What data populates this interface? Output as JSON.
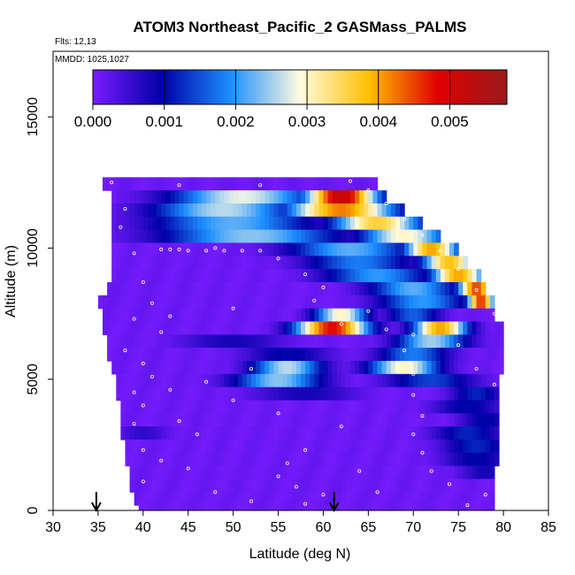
{
  "chart_data": {
    "type": "heatmap",
    "title": "ATOM3 Northeast_Pacific_2 GASMass_PALMS",
    "annotations": [
      "Flts: 12,13",
      "MMDD: 1025,1027"
    ],
    "xlabel": "Latitude (deg N)",
    "ylabel": "Altitude (m)",
    "xlim": [
      30,
      85
    ],
    "ylim": [
      0,
      17500
    ],
    "xticks": [
      30,
      35,
      40,
      45,
      50,
      55,
      60,
      65,
      70,
      75,
      80,
      85
    ],
    "yticks": [
      0,
      5000,
      10000,
      15000
    ],
    "colorbar": {
      "ticks": [
        "0.000",
        "0.001",
        "0.002",
        "0.003",
        "0.004",
        "0.005"
      ],
      "range": [
        0,
        0.0058
      ],
      "colors": [
        "#7a1cff",
        "#0000a8",
        "#1d8fff",
        "#fffbe0",
        "#ffc000",
        "#e00000",
        "#9a1a1a"
      ],
      "placement": "top inside"
    },
    "flight_markers_lat": [
      34.8,
      61.2
    ],
    "heat_rows": [
      {
        "alt": 12450,
        "lat_start": 35.5,
        "lat_end": 66.0,
        "peaks": []
      },
      {
        "alt": 11950,
        "lat_start": 36.5,
        "lat_end": 67.0,
        "peaks": [
          [
            51,
            0.0028,
            8
          ],
          [
            62,
            0.0052,
            4
          ]
        ]
      },
      {
        "alt": 11450,
        "lat_start": 36.5,
        "lat_end": 69.0,
        "peaks": [
          [
            49,
            0.0026,
            8
          ],
          [
            62,
            0.0042,
            6
          ]
        ]
      },
      {
        "alt": 10950,
        "lat_start": 36.5,
        "lat_end": 71.0,
        "peaks": [
          [
            50,
            0.0022,
            9
          ],
          [
            66,
            0.0036,
            5
          ]
        ]
      },
      {
        "alt": 10450,
        "lat_start": 36.5,
        "lat_end": 73.0,
        "peaks": [
          [
            52,
            0.0024,
            10
          ],
          [
            69,
            0.003,
            5
          ]
        ]
      },
      {
        "alt": 9950,
        "lat_start": 36.5,
        "lat_end": 75.0,
        "peaks": [
          [
            63,
            0.0022,
            7
          ],
          [
            72,
            0.004,
            3
          ]
        ]
      },
      {
        "alt": 9450,
        "lat_start": 36.5,
        "lat_end": 76.0,
        "peaks": [
          [
            64,
            0.0018,
            6
          ],
          [
            74,
            0.0038,
            3
          ]
        ]
      },
      {
        "alt": 8950,
        "lat_start": 36.5,
        "lat_end": 77.5,
        "peaks": [
          [
            66,
            0.002,
            6
          ],
          [
            75,
            0.004,
            3
          ]
        ]
      },
      {
        "alt": 8450,
        "lat_start": 36.0,
        "lat_end": 78.0,
        "peaks": [
          [
            70,
            0.0022,
            5
          ],
          [
            77,
            0.0045,
            2
          ]
        ]
      },
      {
        "alt": 7950,
        "lat_start": 35.0,
        "lat_end": 79.0,
        "peaks": [
          [
            71,
            0.002,
            5
          ],
          [
            77.5,
            0.0046,
            1.5
          ]
        ]
      },
      {
        "alt": 7450,
        "lat_start": 35.5,
        "lat_end": 79.0,
        "peaks": [
          [
            62,
            0.003,
            3
          ],
          [
            70,
            0.0016,
            3
          ]
        ]
      },
      {
        "alt": 6950,
        "lat_start": 35.5,
        "lat_end": 80.0,
        "peaks": [
          [
            61,
            0.0048,
            4
          ],
          [
            73,
            0.004,
            3
          ]
        ]
      },
      {
        "alt": 6450,
        "lat_start": 36.0,
        "lat_end": 80.0,
        "peaks": [
          [
            50,
            0.0008,
            6
          ],
          [
            72,
            0.0025,
            4
          ]
        ]
      },
      {
        "alt": 5950,
        "lat_start": 36.0,
        "lat_end": 80.0,
        "peaks": [
          [
            56,
            0.001,
            5
          ],
          [
            70,
            0.0018,
            4
          ]
        ]
      },
      {
        "alt": 5450,
        "lat_start": 36.5,
        "lat_end": 80.0,
        "peaks": [
          [
            56,
            0.0026,
            4
          ],
          [
            69,
            0.003,
            4
          ]
        ]
      },
      {
        "alt": 4950,
        "lat_start": 37.0,
        "lat_end": 79.5,
        "peaks": [
          [
            55,
            0.0024,
            5
          ],
          [
            72,
            0.0014,
            5
          ]
        ]
      },
      {
        "alt": 4450,
        "lat_start": 37.0,
        "lat_end": 79.5,
        "peaks": [
          [
            58,
            0.0008,
            6
          ],
          [
            77,
            0.0012,
            3
          ]
        ]
      },
      {
        "alt": 3950,
        "lat_start": 37.5,
        "lat_end": 79.5,
        "peaks": [
          [
            76,
            0.001,
            4
          ]
        ]
      },
      {
        "alt": 3450,
        "lat_start": 37.5,
        "lat_end": 79.5,
        "peaks": [
          [
            78,
            0.001,
            3
          ]
        ]
      },
      {
        "alt": 2950,
        "lat_start": 37.5,
        "lat_end": 79.5,
        "peaks": [
          [
            40,
            0.0006,
            3
          ],
          [
            76,
            0.0012,
            4
          ]
        ]
      },
      {
        "alt": 2450,
        "lat_start": 38.0,
        "lat_end": 79.5,
        "peaks": [
          [
            77,
            0.0012,
            4
          ]
        ]
      },
      {
        "alt": 1950,
        "lat_start": 38.0,
        "lat_end": 79.5,
        "peaks": [
          [
            77,
            0.001,
            4
          ]
        ]
      },
      {
        "alt": 1450,
        "lat_start": 38.5,
        "lat_end": 79.0,
        "peaks": [
          [
            78,
            0.0008,
            3
          ]
        ]
      },
      {
        "alt": 950,
        "lat_start": 38.5,
        "lat_end": 79.0,
        "peaks": []
      },
      {
        "alt": 450,
        "lat_start": 39.0,
        "lat_end": 79.0,
        "peaks": []
      },
      {
        "alt": 100,
        "lat_start": 39.5,
        "lat_end": 79.0,
        "peaks": []
      }
    ],
    "sample_points": [
      [
        36.5,
        12500
      ],
      [
        45,
        9900
      ],
      [
        47,
        9900
      ],
      [
        49,
        9900
      ],
      [
        51,
        9900
      ],
      [
        53,
        9900
      ],
      [
        42,
        9950
      ],
      [
        43,
        9950
      ],
      [
        44,
        9950
      ],
      [
        38,
        11500
      ],
      [
        37.5,
        10800
      ],
      [
        39,
        9800
      ],
      [
        40,
        8700
      ],
      [
        41,
        7900
      ],
      [
        43,
        7400
      ],
      [
        39,
        7300
      ],
      [
        42,
        6800
      ],
      [
        38,
        6100
      ],
      [
        40,
        5600
      ],
      [
        41,
        5100
      ],
      [
        39,
        4500
      ],
      [
        43,
        4600
      ],
      [
        40,
        4000
      ],
      [
        44,
        3400
      ],
      [
        39,
        3300
      ],
      [
        46,
        2900
      ],
      [
        40,
        2300
      ],
      [
        42,
        1900
      ],
      [
        45,
        1600
      ],
      [
        40,
        1100
      ],
      [
        48,
        700
      ],
      [
        52,
        350
      ],
      [
        56,
        1800
      ],
      [
        55,
        1300
      ],
      [
        57,
        900
      ],
      [
        60,
        600
      ],
      [
        58,
        250
      ],
      [
        63,
        12550
      ],
      [
        65,
        12200
      ],
      [
        67,
        11700
      ],
      [
        69,
        11100
      ],
      [
        71,
        10500
      ],
      [
        73,
        9900
      ],
      [
        75,
        9200
      ],
      [
        77,
        8400
      ],
      [
        79,
        7500
      ],
      [
        70,
        6700
      ],
      [
        69,
        6100
      ],
      [
        70,
        5200
      ],
      [
        70,
        4400
      ],
      [
        71,
        3600
      ],
      [
        70,
        2900
      ],
      [
        71,
        2200
      ],
      [
        72,
        1500
      ],
      [
        74,
        1000
      ],
      [
        78,
        600
      ],
      [
        76,
        200
      ],
      [
        48,
        10000
      ],
      [
        55,
        9600
      ],
      [
        58,
        9000
      ],
      [
        60,
        8500
      ],
      [
        62,
        7100
      ],
      [
        50,
        7700
      ],
      [
        52,
        5400
      ],
      [
        47,
        4900
      ],
      [
        50,
        4200
      ],
      [
        55,
        3700
      ],
      [
        62,
        3200
      ],
      [
        58,
        2300
      ],
      [
        64,
        1500
      ],
      [
        66,
        700
      ],
      [
        44,
        12400
      ],
      [
        53,
        12400
      ],
      [
        59,
        8000
      ],
      [
        65,
        7600
      ],
      [
        67,
        6900
      ],
      [
        75,
        6300
      ],
      [
        77,
        5400
      ],
      [
        79,
        4800
      ]
    ]
  }
}
